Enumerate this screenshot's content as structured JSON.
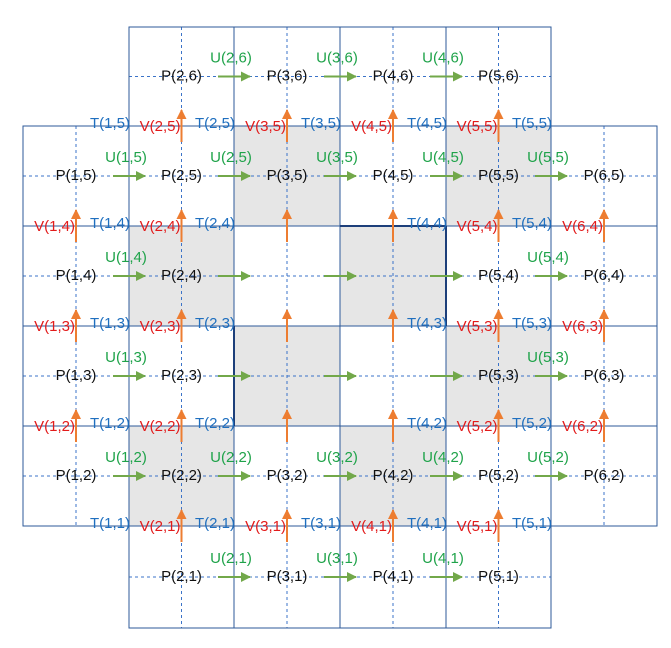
{
  "colors": {
    "grid": "#2e5a99",
    "dashed": "#3b73c8",
    "shade": "#e6e6e6",
    "p_label": "#111111",
    "u_label": "#1fa34a",
    "v_label": "#e21b1b",
    "t_label": "#1f6fbf",
    "u_arrow": "#72a84a",
    "v_arrow": "#ed7d31"
  },
  "pressure_nodes": [
    {
      "i": 2,
      "j": 6,
      "label": "P(2,6)"
    },
    {
      "i": 3,
      "j": 6,
      "label": "P(3,6)"
    },
    {
      "i": 4,
      "j": 6,
      "label": "P(4,6)"
    },
    {
      "i": 5,
      "j": 6,
      "label": "P(5,6)"
    },
    {
      "i": 1,
      "j": 5,
      "label": "P(1,5)"
    },
    {
      "i": 2,
      "j": 5,
      "label": "P(2,5)"
    },
    {
      "i": 3,
      "j": 5,
      "label": "P(3,5)"
    },
    {
      "i": 4,
      "j": 5,
      "label": "P(4,5)"
    },
    {
      "i": 5,
      "j": 5,
      "label": "P(5,5)"
    },
    {
      "i": 6,
      "j": 5,
      "label": "P(6,5)"
    },
    {
      "i": 1,
      "j": 4,
      "label": "P(1,4)"
    },
    {
      "i": 2,
      "j": 4,
      "label": "P(2,4)"
    },
    {
      "i": 5,
      "j": 4,
      "label": "P(5,4)"
    },
    {
      "i": 6,
      "j": 4,
      "label": "P(6,4)"
    },
    {
      "i": 1,
      "j": 3,
      "label": "P(1,3)"
    },
    {
      "i": 2,
      "j": 3,
      "label": "P(2,3)"
    },
    {
      "i": 5,
      "j": 3,
      "label": "P(5,3)"
    },
    {
      "i": 6,
      "j": 3,
      "label": "P(6,3)"
    },
    {
      "i": 1,
      "j": 2,
      "label": "P(1,2)"
    },
    {
      "i": 2,
      "j": 2,
      "label": "P(2,2)"
    },
    {
      "i": 3,
      "j": 2,
      "label": "P(3,2)"
    },
    {
      "i": 4,
      "j": 2,
      "label": "P(4,2)"
    },
    {
      "i": 5,
      "j": 2,
      "label": "P(5,2)"
    },
    {
      "i": 6,
      "j": 2,
      "label": "P(6,2)"
    },
    {
      "i": 2,
      "j": 1,
      "label": "P(2,1)"
    },
    {
      "i": 3,
      "j": 1,
      "label": "P(3,1)"
    },
    {
      "i": 4,
      "j": 1,
      "label": "P(4,1)"
    },
    {
      "i": 5,
      "j": 1,
      "label": "P(5,1)"
    }
  ],
  "u_labels": [
    {
      "i": 2,
      "j": 6,
      "label": "U(2,6)"
    },
    {
      "i": 3,
      "j": 6,
      "label": "U(3,6)"
    },
    {
      "i": 4,
      "j": 6,
      "label": "U(4,6)"
    },
    {
      "i": 1,
      "j": 5,
      "label": "U(1,5)"
    },
    {
      "i": 2,
      "j": 5,
      "label": "U(2,5)"
    },
    {
      "i": 3,
      "j": 5,
      "label": "U(3,5)"
    },
    {
      "i": 4,
      "j": 5,
      "label": "U(4,5)"
    },
    {
      "i": 5,
      "j": 5,
      "label": "U(5,5)"
    },
    {
      "i": 1,
      "j": 4,
      "label": "U(1,4)"
    },
    {
      "i": 5,
      "j": 4,
      "label": "U(5,4)"
    },
    {
      "i": 1,
      "j": 3,
      "label": "U(1,3)"
    },
    {
      "i": 5,
      "j": 3,
      "label": "U(5,3)"
    },
    {
      "i": 1,
      "j": 2,
      "label": "U(1,2)"
    },
    {
      "i": 2,
      "j": 2,
      "label": "U(2,2)"
    },
    {
      "i": 3,
      "j": 2,
      "label": "U(3,2)"
    },
    {
      "i": 4,
      "j": 2,
      "label": "U(4,2)"
    },
    {
      "i": 5,
      "j": 2,
      "label": "U(5,2)"
    },
    {
      "i": 2,
      "j": 1,
      "label": "U(2,1)"
    },
    {
      "i": 3,
      "j": 1,
      "label": "U(3,1)"
    },
    {
      "i": 4,
      "j": 1,
      "label": "U(4,1)"
    }
  ],
  "v_labels": [
    {
      "i": 2,
      "j": 5,
      "label": "V(2,5)"
    },
    {
      "i": 3,
      "j": 5,
      "label": "V(3,5)"
    },
    {
      "i": 4,
      "j": 5,
      "label": "V(4,5)"
    },
    {
      "i": 5,
      "j": 5,
      "label": "V(5,5)"
    },
    {
      "i": 1,
      "j": 4,
      "label": "V(1,4)"
    },
    {
      "i": 2,
      "j": 4,
      "label": "V(2,4)"
    },
    {
      "i": 5,
      "j": 4,
      "label": "V(5,4)"
    },
    {
      "i": 6,
      "j": 4,
      "label": "V(6,4)"
    },
    {
      "i": 1,
      "j": 3,
      "label": "V(1,3)"
    },
    {
      "i": 2,
      "j": 3,
      "label": "V(2,3)"
    },
    {
      "i": 5,
      "j": 3,
      "label": "V(5,3)"
    },
    {
      "i": 6,
      "j": 3,
      "label": "V(6,3)"
    },
    {
      "i": 1,
      "j": 2,
      "label": "V(1,2)"
    },
    {
      "i": 2,
      "j": 2,
      "label": "V(2,2)"
    },
    {
      "i": 5,
      "j": 2,
      "label": "V(5,2)"
    },
    {
      "i": 6,
      "j": 2,
      "label": "V(6,2)"
    },
    {
      "i": 2,
      "j": 1,
      "label": "V(2,1)"
    },
    {
      "i": 3,
      "j": 1,
      "label": "V(3,1)"
    },
    {
      "i": 4,
      "j": 1,
      "label": "V(4,1)"
    },
    {
      "i": 5,
      "j": 1,
      "label": "V(5,1)"
    }
  ],
  "t_labels": [
    {
      "i": 1,
      "j": 5,
      "label": "T(1,5)"
    },
    {
      "i": 2,
      "j": 5,
      "label": "T(2,5)"
    },
    {
      "i": 3,
      "j": 5,
      "label": "T(3,5)"
    },
    {
      "i": 4,
      "j": 5,
      "label": "T(4,5)"
    },
    {
      "i": 5,
      "j": 5,
      "label": "T(5,5)"
    },
    {
      "i": 1,
      "j": 4,
      "label": "T(1,4)"
    },
    {
      "i": 2,
      "j": 4,
      "label": "T(2,4)"
    },
    {
      "i": 4,
      "j": 4,
      "label": "T(4,4)"
    },
    {
      "i": 5,
      "j": 4,
      "label": "T(5,4)"
    },
    {
      "i": 1,
      "j": 3,
      "label": "T(1,3)"
    },
    {
      "i": 2,
      "j": 3,
      "label": "T(2,3)"
    },
    {
      "i": 4,
      "j": 3,
      "label": "T(4,3)"
    },
    {
      "i": 5,
      "j": 3,
      "label": "T(5,3)"
    },
    {
      "i": 1,
      "j": 2,
      "label": "T(1,2)"
    },
    {
      "i": 2,
      "j": 2,
      "label": "T(2,2)"
    },
    {
      "i": 4,
      "j": 2,
      "label": "T(4,2)"
    },
    {
      "i": 5,
      "j": 2,
      "label": "T(5,2)"
    },
    {
      "i": 1,
      "j": 1,
      "label": "T(1,1)"
    },
    {
      "i": 2,
      "j": 1,
      "label": "T(2,1)"
    },
    {
      "i": 3,
      "j": 1,
      "label": "T(3,1)"
    },
    {
      "i": 4,
      "j": 1,
      "label": "T(4,1)"
    },
    {
      "i": 5,
      "j": 1,
      "label": "T(5,1)"
    }
  ]
}
